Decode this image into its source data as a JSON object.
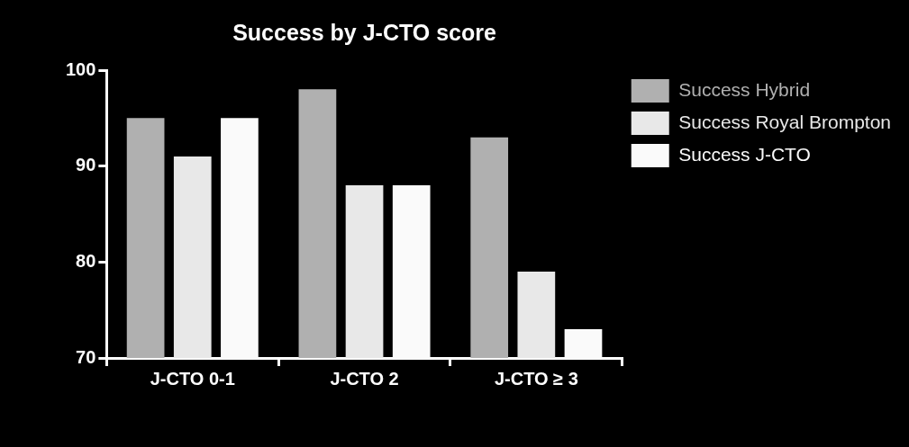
{
  "chart_data": {
    "type": "bar",
    "title": "Success by J-CTO score",
    "categories": [
      "J-CTO 0-1",
      "J-CTO 2",
      "J-CTO ≥ 3"
    ],
    "series": [
      {
        "name": "Success Hybrid",
        "color": "#b0b0b0",
        "values": [
          95,
          98,
          93
        ]
      },
      {
        "name": "Success Royal Brompton",
        "color": "#e8e8e8",
        "values": [
          91,
          88,
          79
        ]
      },
      {
        "name": "Success J-CTO",
        "color": "#fafafa",
        "values": [
          95,
          88,
          73
        ]
      }
    ],
    "ylim": [
      70,
      100
    ],
    "yticks": [
      70,
      80,
      90,
      100
    ],
    "grid": false,
    "legend": "top right"
  }
}
